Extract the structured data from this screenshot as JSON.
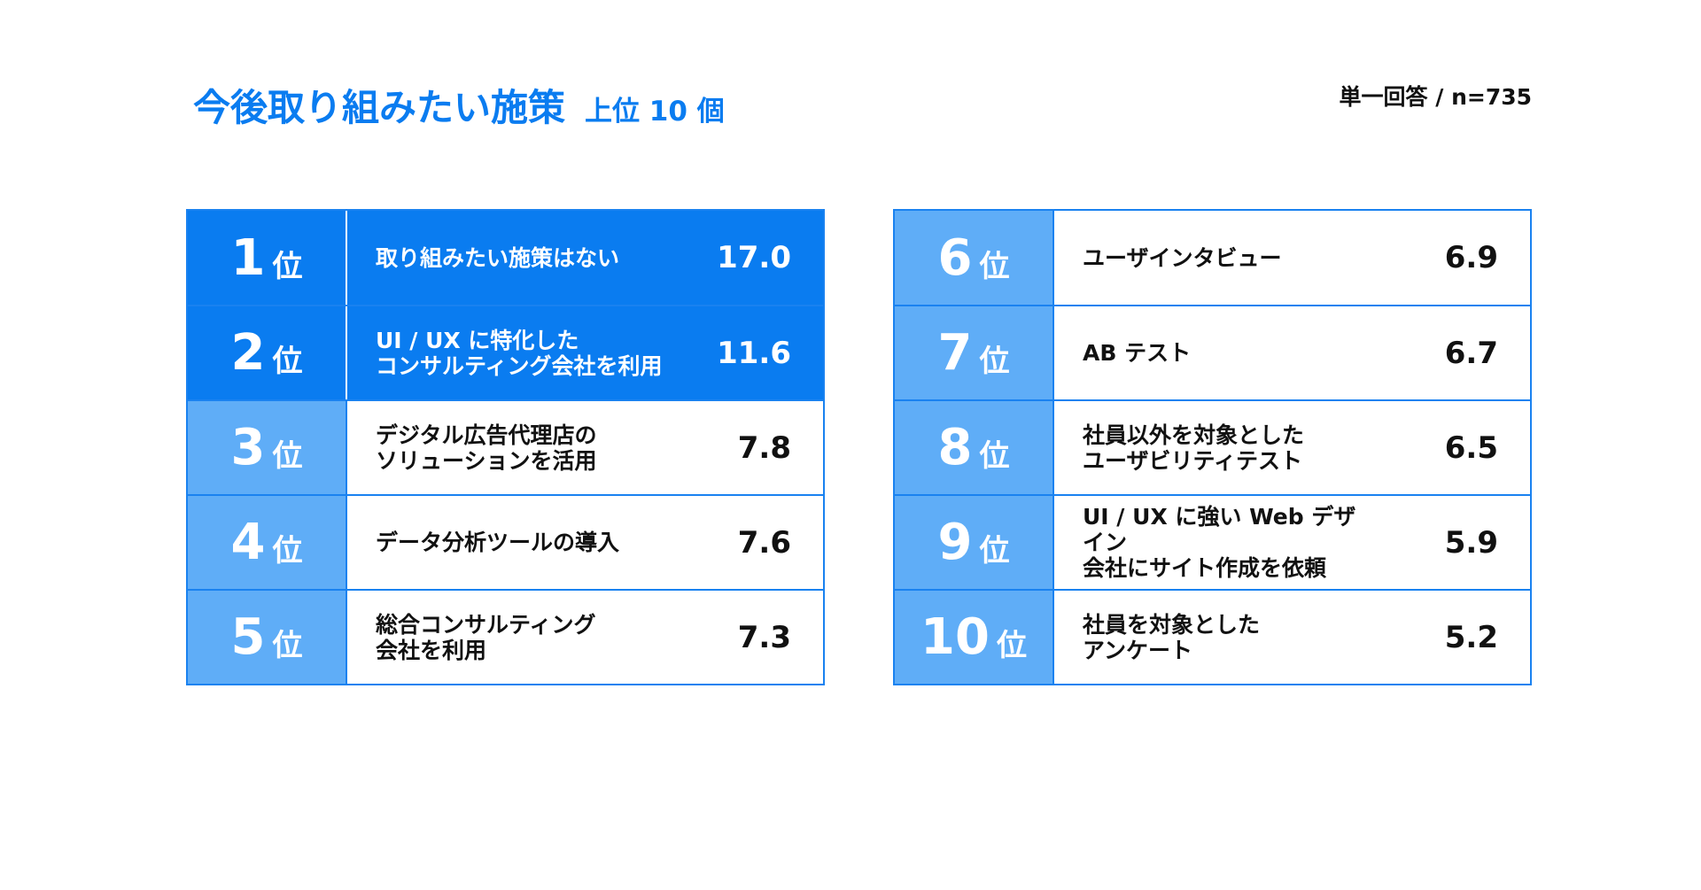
{
  "header": {
    "title": "今後取り組みたい施策",
    "subtitle": "上位 10 個",
    "note": "単一回答 / n=735"
  },
  "tables": [
    {
      "rows": [
        {
          "rank": "1",
          "rank_unit": "位",
          "label": [
            "取り組みたい施策はない"
          ],
          "value": "17.0",
          "highlight": true
        },
        {
          "rank": "2",
          "rank_unit": "位",
          "label": [
            "UI / UX に特化した",
            "コンサルティング会社を利用"
          ],
          "value": "11.6",
          "highlight": true
        },
        {
          "rank": "3",
          "rank_unit": "位",
          "label": [
            "デジタル広告代理店の",
            "ソリューションを活用"
          ],
          "value": "7.8",
          "highlight": false
        },
        {
          "rank": "4",
          "rank_unit": "位",
          "label": [
            "データ分析ツールの導入"
          ],
          "value": "7.6",
          "highlight": false
        },
        {
          "rank": "5",
          "rank_unit": "位",
          "label": [
            "総合コンサルティング",
            "会社を利用"
          ],
          "value": "7.3",
          "highlight": false
        }
      ]
    },
    {
      "rows": [
        {
          "rank": "6",
          "rank_unit": "位",
          "label": [
            "ユーザインタビュー"
          ],
          "value": "6.9",
          "highlight": false
        },
        {
          "rank": "7",
          "rank_unit": "位",
          "label": [
            "AB テスト"
          ],
          "value": "6.7",
          "highlight": false
        },
        {
          "rank": "8",
          "rank_unit": "位",
          "label": [
            "社員以外を対象とした",
            "ユーザビリティテスト"
          ],
          "value": "6.5",
          "highlight": false
        },
        {
          "rank": "9",
          "rank_unit": "位",
          "label": [
            "UI / UX に強い Web デザイン",
            "会社にサイト作成を依頼"
          ],
          "value": "5.9",
          "highlight": false
        },
        {
          "rank": "10",
          "rank_unit": "位",
          "label": [
            "社員を対象とした",
            "アンケート"
          ],
          "value": "5.2",
          "highlight": false
        }
      ]
    }
  ]
}
